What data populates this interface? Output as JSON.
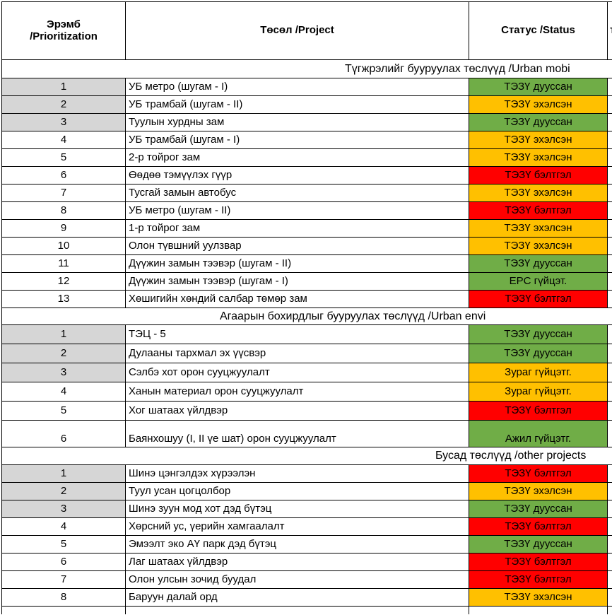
{
  "palette": {
    "green": "#70AD47",
    "yellow": "#FFC000",
    "red": "#FF0000",
    "gray_priority": "#D6D6D6",
    "border": "#000000"
  },
  "header": {
    "prioritization": "Эрэмб\n/Prioritization",
    "project": "Төсөл /Project",
    "status": "Статус /Status",
    "next_column_partial": "т"
  },
  "sections": [
    {
      "title": "Түгжрэлийг бууруулах төслүүд /Urban mobi",
      "rows": [
        {
          "num": "1",
          "project": "УБ метро (шугам - I)",
          "status": "ТЭЗҮ дууссан",
          "color": "green",
          "gray": true
        },
        {
          "num": "2",
          "project": "УБ трамбай (шугам - II)",
          "status": "ТЭЗҮ эхэлсэн",
          "color": "yellow",
          "gray": true
        },
        {
          "num": "3",
          "project": "Туулын хурдны зам",
          "status": "ТЭЗҮ дууссан",
          "color": "green",
          "gray": true
        },
        {
          "num": "4",
          "project": "УБ трамбай (шугам - I)",
          "status": "ТЭЗҮ эхэлсэн",
          "color": "yellow",
          "gray": false
        },
        {
          "num": "5",
          "project": "2-р тойрог зам",
          "status": "ТЭЗҮ эхэлсэн",
          "color": "yellow",
          "gray": false
        },
        {
          "num": "6",
          "project": "Өөдөө тэмүүлэх гүүр",
          "status": "ТЭЗҮ бэлтгэл",
          "color": "red",
          "gray": false
        },
        {
          "num": "7",
          "project": "Тусгай замын автобус",
          "status": "ТЭЗҮ эхэлсэн",
          "color": "yellow",
          "gray": false
        },
        {
          "num": "8",
          "project": "УБ метро (шугам - II)",
          "status": "ТЭЗҮ бэлтгэл",
          "color": "red",
          "gray": false
        },
        {
          "num": "9",
          "project": "1-р тойрог зам",
          "status": "ТЭЗҮ эхэлсэн",
          "color": "yellow",
          "gray": false
        },
        {
          "num": "10",
          "project": "Олон түвшний уулзвар",
          "status": "ТЭЗҮ эхэлсэн",
          "color": "yellow",
          "gray": false
        },
        {
          "num": "11",
          "project": "Дүүжин замын тээвэр (шугам - II)",
          "status": "ТЭЗҮ дууссан",
          "color": "green",
          "gray": false
        },
        {
          "num": "12",
          "project": "Дүүжин замын тээвэр (шугам - I)",
          "status": "EPC гүйцэт.",
          "color": "green",
          "gray": false
        },
        {
          "num": "13",
          "project": "Хөшигийн хөндий салбар төмөр зам",
          "status": "ТЭЗҮ бэлтгэл",
          "color": "red",
          "gray": false
        }
      ]
    },
    {
      "title": "Агаарын бохирдлыг бууруулах төслүүд /Urban envi",
      "rows": [
        {
          "num": "1",
          "project": "ТЭЦ - 5",
          "status": "ТЭЗҮ дууссан",
          "color": "green",
          "gray": true
        },
        {
          "num": "2",
          "project": "Дулааны тархмал эх үүсвэр",
          "status": "ТЭЗҮ дууссан",
          "color": "green",
          "gray": true
        },
        {
          "num": "3",
          "project": "Сэлбэ хот орон сууцжуулалт",
          "status": "Зураг гүйцэтг.",
          "color": "yellow",
          "gray": true
        },
        {
          "num": "4",
          "project": "Ханын материал орон сууцжуулалт",
          "status": "Зураг гүйцэтг.",
          "color": "yellow",
          "gray": false
        },
        {
          "num": "5",
          "project": "Хог шатаах үйлдвэр",
          "status": "ТЭЗҮ бэлтгэл",
          "color": "red",
          "gray": false
        },
        {
          "num": "6",
          "project": "Баянхошуу (I, II үе шат) орон сууцжуулалт",
          "status": "Ажил гүйцэтг.",
          "color": "green",
          "gray": false,
          "tall": true
        }
      ]
    },
    {
      "title": "Бусад төслүүд /other projects",
      "rows": [
        {
          "num": "1",
          "project": "Шинэ цэнгэлдэх хүрээлэн",
          "status": "ТЭЗҮ бэлтгэл",
          "color": "red",
          "gray": true
        },
        {
          "num": "2",
          "project": "Туул усан цогцолбор",
          "status": "ТЭЗҮ эхэлсэн",
          "color": "yellow",
          "gray": true
        },
        {
          "num": "3",
          "project": "Шинэ зуун мод хот дэд бүтэц",
          "status": "ТЭЗҮ дууссан",
          "color": "green",
          "gray": true
        },
        {
          "num": "4",
          "project": "Хөрсний ус, үерийн хамгаалалт",
          "status": "ТЭЗҮ бэлтгэл",
          "color": "red",
          "gray": false
        },
        {
          "num": "5",
          "project": "Эмээлт эко АҮ парк дэд бүтэц",
          "status": "ТЭЗҮ дууссан",
          "color": "green",
          "gray": false
        },
        {
          "num": "6",
          "project": "Лаг шатаах үйлдвэр",
          "status": "ТЭЗҮ бэлтгэл",
          "color": "red",
          "gray": false
        },
        {
          "num": "7",
          "project": "Олон улсын зочид буудал",
          "status": "ТЭЗҮ бэлтгэл",
          "color": "red",
          "gray": false
        },
        {
          "num": "8",
          "project": "Баруун далай орд",
          "status": "ТЭЗҮ эхэлсэн",
          "color": "yellow",
          "gray": false
        }
      ]
    }
  ]
}
